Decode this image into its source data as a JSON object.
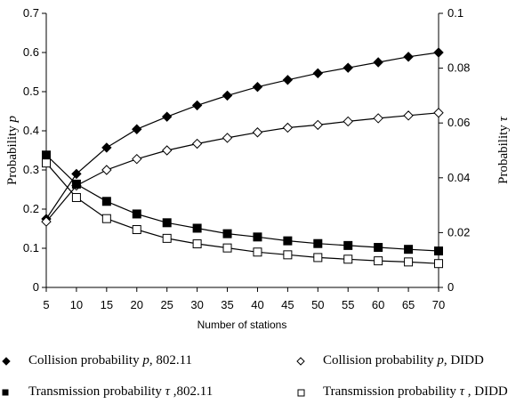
{
  "chart_data": {
    "type": "line",
    "x": [
      5,
      10,
      15,
      20,
      25,
      30,
      35,
      40,
      45,
      50,
      55,
      60,
      65,
      70
    ],
    "xlabel": "Number of stations",
    "ylabel_left": "Probability p",
    "ylabel_right": "Probability τ",
    "ylim_left": [
      0,
      0.7
    ],
    "ylim_right": [
      0,
      0.1
    ],
    "yticks_left": [
      "0",
      "0.1",
      "0.2",
      "0.3",
      "0.4",
      "0.5",
      "0.6",
      "0.7"
    ],
    "yticks_right": [
      "0",
      "0.02",
      "0.04",
      "0.06",
      "0.08",
      "0.1"
    ],
    "grid": false,
    "legend_position": "bottom",
    "series": [
      {
        "name": "Collision probability p, 802.11",
        "axis": "left",
        "marker": "diamond-filled",
        "values": [
          0.175,
          0.29,
          0.357,
          0.404,
          0.436,
          0.465,
          0.49,
          0.512,
          0.53,
          0.547,
          0.561,
          0.575,
          0.589,
          0.6
        ]
      },
      {
        "name": "Collision probability p, DIDD",
        "axis": "left",
        "marker": "diamond-open",
        "values": [
          0.168,
          0.26,
          0.3,
          0.328,
          0.35,
          0.367,
          0.382,
          0.396,
          0.408,
          0.415,
          0.424,
          0.432,
          0.439,
          0.446
        ]
      },
      {
        "name": "Transmission probability τ ,802.11",
        "axis": "right",
        "marker": "square-filled",
        "values": [
          0.0483,
          0.0377,
          0.0314,
          0.0268,
          0.0236,
          0.0216,
          0.0196,
          0.0184,
          0.017,
          0.016,
          0.0153,
          0.0146,
          0.0139,
          0.0133
        ]
      },
      {
        "name": "Transmission probability τ , DIDD",
        "axis": "right",
        "marker": "square-open",
        "values": [
          0.0454,
          0.0328,
          0.0251,
          0.0211,
          0.0179,
          0.0159,
          0.0144,
          0.0129,
          0.0119,
          0.0109,
          0.0103,
          0.0097,
          0.0093,
          0.0087
        ]
      }
    ]
  },
  "legend": {
    "items": [
      {
        "prefix": "Collision probability ",
        "italic": "p",
        "suffix": ", 802.11"
      },
      {
        "prefix": "Collision probability ",
        "italic": "p",
        "suffix": ", DIDD"
      },
      {
        "prefix": "Transmission probability ",
        "italic": "τ",
        "suffix": " ,802.11"
      },
      {
        "prefix": "Transmission probability ",
        "italic": "τ",
        "suffix": " , DIDD"
      }
    ]
  }
}
